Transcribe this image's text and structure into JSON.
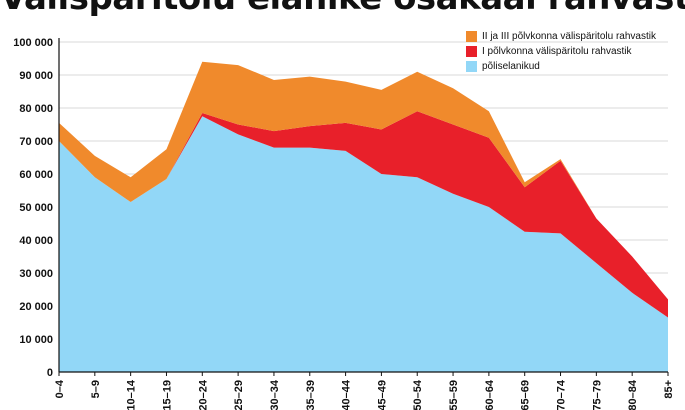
{
  "chart_data": {
    "type": "area",
    "stacked": true,
    "title": "Välispäritolu elanike osakaal rahvastikus",
    "xlabel": "",
    "ylabel": "",
    "ylim": [
      0,
      100000
    ],
    "yticks": [
      0,
      10000,
      20000,
      30000,
      40000,
      50000,
      60000,
      70000,
      80000,
      90000,
      100000
    ],
    "ytick_labels": [
      "0",
      "10 000",
      "20 000",
      "30 000",
      "40 000",
      "50 000",
      "60 000",
      "70 000",
      "80 000",
      "90 000",
      "100 000"
    ],
    "categories": [
      "0–4",
      "5–9",
      "10–14",
      "15–19",
      "20–24",
      "25–29",
      "30–34",
      "35–39",
      "40–44",
      "45–49",
      "50–54",
      "55–59",
      "60–64",
      "65–69",
      "70–74",
      "75–79",
      "80–84",
      "85+"
    ],
    "grid": true,
    "legend_position": "top-right",
    "series": [
      {
        "name": "põliselanikud",
        "color": "#92d7f7",
        "values": [
          70000,
          59000,
          51500,
          58500,
          77500,
          72000,
          68000,
          68000,
          67000,
          60000,
          59000,
          54000,
          50000,
          42500,
          42000,
          33000,
          24000,
          16500
        ]
      },
      {
        "name": "I põlvkonna välispäritolu rahvastik",
        "color": "#e8202a",
        "values": [
          0,
          0,
          0,
          0,
          1000,
          3000,
          5000,
          6500,
          8500,
          13500,
          20000,
          21000,
          21000,
          13500,
          22000,
          13500,
          11000,
          5500
        ]
      },
      {
        "name": "II ja III põlvkonna välispäritolu rahvastik",
        "color": "#f08a2c",
        "values": [
          5500,
          6500,
          7500,
          9000,
          15500,
          18000,
          15500,
          15000,
          12500,
          12000,
          12000,
          11000,
          8000,
          1500,
          500,
          0,
          0,
          0
        ]
      }
    ]
  }
}
